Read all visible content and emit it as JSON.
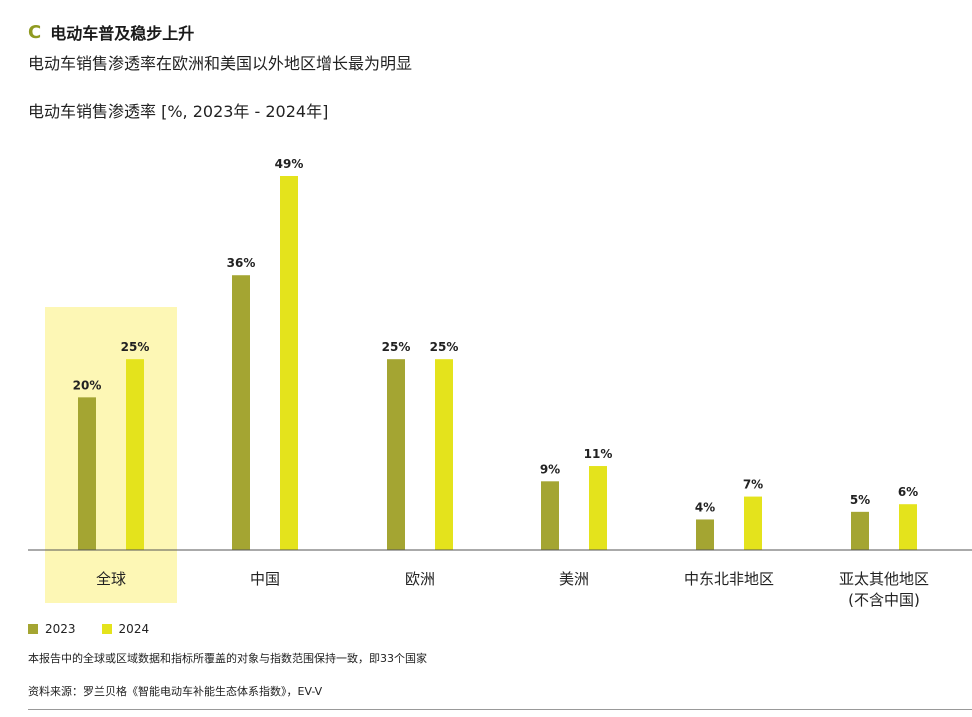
{
  "header": {
    "letter": "C",
    "title": "电动车普及稳步上升",
    "subtitle": "电动车销售渗透率在欧洲和美国以外地区增长最为明显"
  },
  "chart_label": "电动车销售渗透率 [%, 2023年 - 2024年]",
  "colors": {
    "series_2023": "#a4a532",
    "series_2024": "#e4e31c",
    "highlight": "#fdf7b5",
    "letter": "#8f9a20"
  },
  "chart_data": {
    "type": "bar",
    "categories": [
      "全球",
      "中国",
      "欧洲",
      "美洲",
      "中东北非地区",
      "亚太其他地区\n(不含中国)"
    ],
    "series": [
      {
        "name": "2023",
        "values": [
          20,
          36,
          25,
          9,
          4,
          5
        ]
      },
      {
        "name": "2024",
        "values": [
          25,
          49,
          25,
          11,
          7,
          6
        ]
      }
    ],
    "data_labels": [
      [
        "20%",
        "36%",
        "25%",
        "9%",
        "4%",
        "5%"
      ],
      [
        "25%",
        "49%",
        "25%",
        "11%",
        "7%",
        "6%"
      ]
    ],
    "ylim": [
      0,
      49
    ],
    "grid": false,
    "highlighted_category": "全球",
    "legend_position": "bottom-left"
  },
  "footer": {
    "note": "本报告中的全球或区域数据和指标所覆盖的对象与指数范围保持一致，即33个国家",
    "source": "资料来源：罗兰贝格《智能电动车补能生态体系指数》，EV-V"
  }
}
